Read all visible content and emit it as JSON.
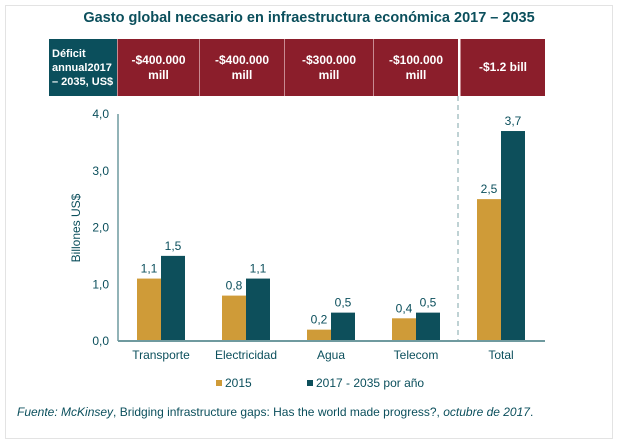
{
  "title": "Gasto global necesario en infraestructura económica 2017 – 2035",
  "header": {
    "label_lines": [
      "Déficit",
      "annual2017",
      "– 2035, US$"
    ],
    "cells": [
      [
        "-$400.000",
        "mill"
      ],
      [
        "-$400.000",
        "mill"
      ],
      [
        "-$300.000",
        "mill"
      ],
      [
        "-$100.000",
        "mill"
      ],
      [
        "-$1.2 bill"
      ]
    ]
  },
  "chart_data": {
    "type": "bar",
    "categories": [
      "Transporte",
      "Electricidad",
      "Agua",
      "Telecom",
      "Total"
    ],
    "series": [
      {
        "name": "2015",
        "values": [
          1.1,
          0.8,
          0.2,
          0.4,
          2.5
        ],
        "labels": [
          "1,1",
          "0,8",
          "0,2",
          "0,4",
          "2,5"
        ],
        "color": "#cf9b38"
      },
      {
        "name": "2017 - 2035 por año",
        "values": [
          1.5,
          1.1,
          0.5,
          0.5,
          3.7
        ],
        "labels": [
          "1,5",
          "1,1",
          "0,5",
          "0,5",
          "3,7"
        ],
        "color": "#0d4f5b"
      }
    ],
    "ylabel": "Billones US$",
    "ylim": [
      0,
      4
    ],
    "yticks": [
      "0,0",
      "1,0",
      "2,0",
      "3,0",
      "4,0"
    ],
    "grid": false,
    "legend": "bottom"
  },
  "colors": {
    "header_red": "#8b1e2b",
    "header_teal": "#0b4f5c",
    "text": "#0b4f5c"
  },
  "source": {
    "prefix": "Fuente: McKinsey",
    "title": ", Bridging infrastructure gaps: Has the world made progress?, ",
    "date": "octubre de 2017",
    "end": "."
  }
}
